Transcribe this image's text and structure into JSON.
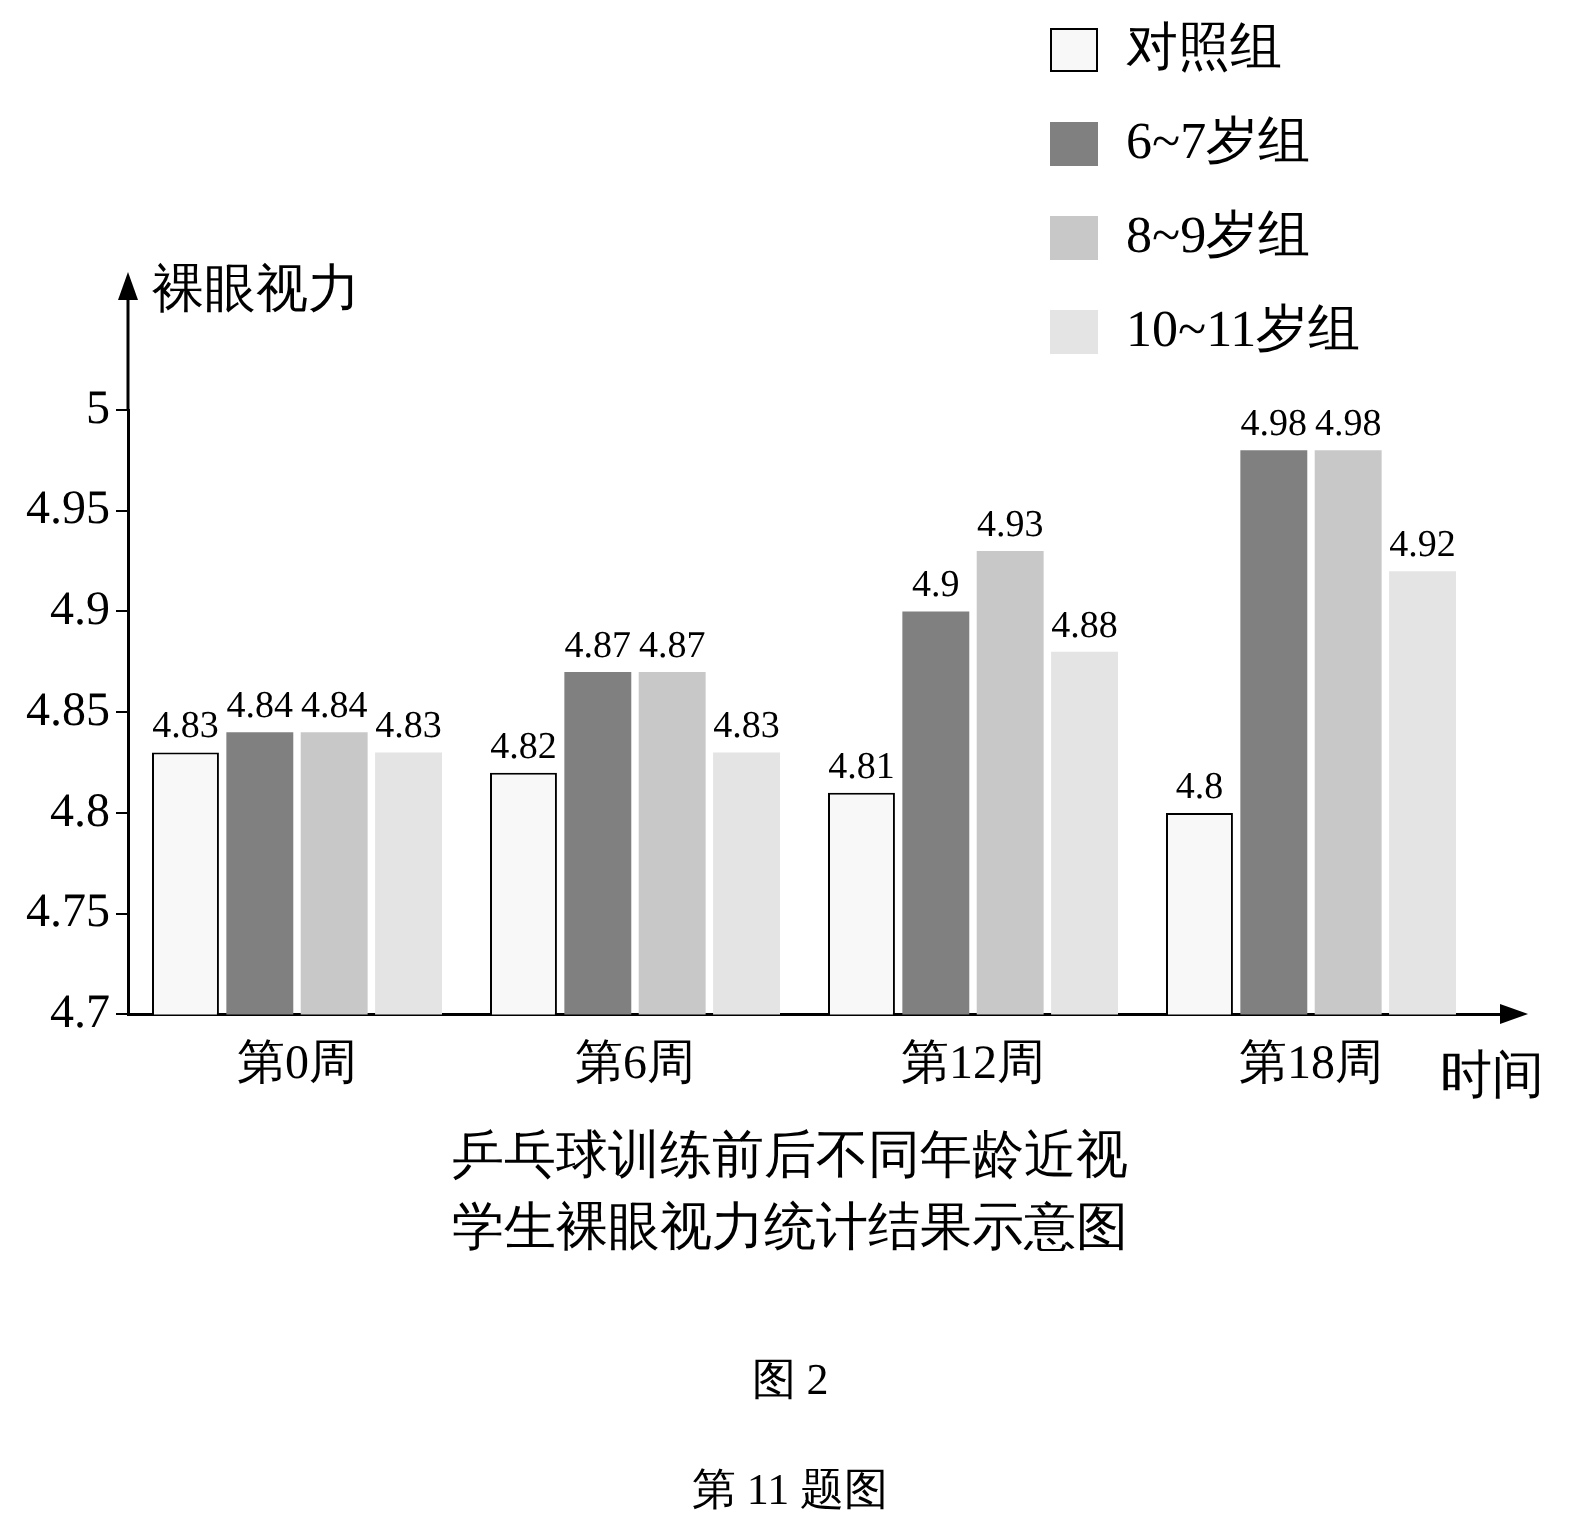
{
  "chart_data": {
    "type": "bar",
    "title": "乒乓球训练前后不同年龄近视学生裸眼视力统计结果示意图",
    "xlabel": "时间",
    "ylabel": "裸眼视力",
    "categories": [
      "第0周",
      "第6周",
      "第12周",
      "第18周"
    ],
    "series": [
      {
        "name": "对照组",
        "color": "#f8f8f8",
        "values": [
          4.83,
          4.82,
          4.81,
          4.8
        ]
      },
      {
        "name": "6~7岁组",
        "color": "#808080",
        "values": [
          4.84,
          4.87,
          4.9,
          4.98
        ]
      },
      {
        "name": "8~9岁组",
        "color": "#c8c8c8",
        "values": [
          4.84,
          4.87,
          4.93,
          4.98
        ]
      },
      {
        "name": "10~11岁组",
        "color": "#e4e4e4",
        "values": [
          4.83,
          4.83,
          4.88,
          4.92
        ]
      }
    ],
    "ylim": [
      4.7,
      5
    ],
    "yticks": [
      4.7,
      4.75,
      4.8,
      4.85,
      4.9,
      4.95,
      5
    ],
    "data_labels": true,
    "legend": "top right",
    "annotations": [
      "图 2",
      "第 11 题图"
    ]
  }
}
